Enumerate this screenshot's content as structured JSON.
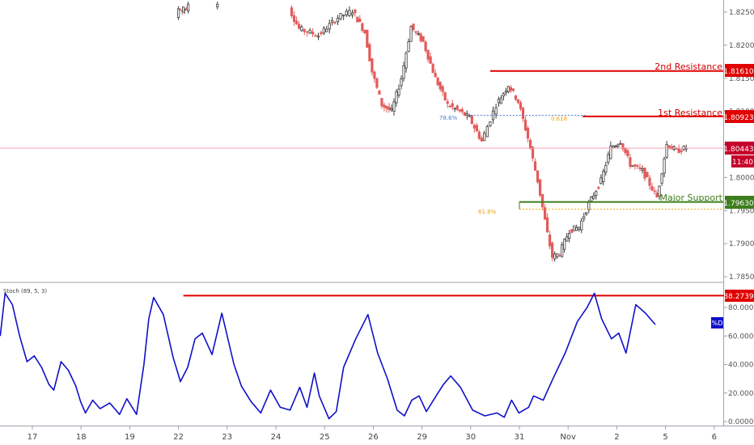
{
  "colors": {
    "up_candle": "#3a3a3a",
    "down_candle": "#e35b5b",
    "resistance": "#e00000",
    "support": "#3e7d1c",
    "fib": "#f0a500",
    "fib_blue": "#4a7fd0",
    "stoch_line": "#1010c8",
    "price_line": "#f2a3b5",
    "current_tag": "#c6002a",
    "pct_badge": "#1010c8"
  },
  "price_axis": {
    "ticks": [
      "1.82500",
      "1.82000",
      "1.81500",
      "1.81000",
      "1.80500",
      "1.80000",
      "1.79500",
      "1.79000",
      "1.78500"
    ],
    "current_price": "1.80443",
    "countdown": "11:40"
  },
  "levels": {
    "r2": {
      "label": "2nd Resistance",
      "value": "1.81610"
    },
    "r1": {
      "label": "1st Resistance",
      "value": "1.80923"
    },
    "support": {
      "label": "Major Support",
      "value": "1.79630"
    }
  },
  "fib_labels": {
    "f1": "78.6%",
    "f2": "0.618",
    "f3": "61.8%"
  },
  "indicator": {
    "name": "Stoch (89, 5, 3)",
    "level_value": "88.2739",
    "badge": "%D",
    "ticks": [
      "80.0000",
      "60.0000",
      "40.0000",
      "20.0000",
      "0.0000"
    ]
  },
  "time_axis": [
    "17",
    "18",
    "19",
    "22",
    "23",
    "24",
    "25",
    "26",
    "29",
    "30",
    "31",
    "Nov",
    "2",
    "5",
    "6"
  ],
  "chart_data": [
    {
      "type": "candlestick",
      "title": "",
      "ylim": [
        1.7835,
        1.8265
      ],
      "x_ticks": [
        "17",
        "18",
        "19",
        "22",
        "23",
        "24",
        "25",
        "26",
        "29",
        "30",
        "31",
        "Nov",
        "2",
        "5",
        "6"
      ],
      "anchors": [
        {
          "day": 3.0,
          "price": 1.8255
        },
        {
          "day": 3.1,
          "price": 1.8252
        },
        {
          "day": 3.2,
          "price": 1.8258
        },
        {
          "day": 5.3,
          "price": 1.8255
        },
        {
          "day": 5.5,
          "price": 1.8225
        },
        {
          "day": 5.9,
          "price": 1.8215
        },
        {
          "day": 6.3,
          "price": 1.8242
        },
        {
          "day": 6.6,
          "price": 1.8252
        },
        {
          "day": 6.85,
          "price": 1.822
        },
        {
          "day": 7.0,
          "price": 1.816
        },
        {
          "day": 7.2,
          "price": 1.811
        },
        {
          "day": 7.4,
          "price": 1.81
        },
        {
          "day": 7.6,
          "price": 1.815
        },
        {
          "day": 7.8,
          "price": 1.8228
        },
        {
          "day": 8.05,
          "price": 1.8205
        },
        {
          "day": 8.3,
          "price": 1.815
        },
        {
          "day": 8.55,
          "price": 1.811
        },
        {
          "day": 8.8,
          "price": 1.81
        },
        {
          "day": 9.0,
          "price": 1.809
        },
        {
          "day": 9.25,
          "price": 1.8055
        },
        {
          "day": 9.55,
          "price": 1.811
        },
        {
          "day": 9.8,
          "price": 1.814
        },
        {
          "day": 10.0,
          "price": 1.8115
        },
        {
          "day": 10.2,
          "price": 1.806
        },
        {
          "day": 10.4,
          "price": 1.7995
        },
        {
          "day": 10.6,
          "price": 1.7915
        },
        {
          "day": 10.7,
          "price": 1.788
        },
        {
          "day": 10.85,
          "price": 1.7885
        },
        {
          "day": 11.05,
          "price": 1.792
        },
        {
          "day": 11.25,
          "price": 1.7925
        },
        {
          "day": 11.45,
          "price": 1.796
        },
        {
          "day": 11.7,
          "price": 1.7995
        },
        {
          "day": 11.9,
          "price": 1.8045
        },
        {
          "day": 12.1,
          "price": 1.8055
        },
        {
          "day": 12.3,
          "price": 1.802
        },
        {
          "day": 12.55,
          "price": 1.801
        },
        {
          "day": 12.7,
          "price": 1.799
        },
        {
          "day": 12.85,
          "price": 1.797
        },
        {
          "day": 13.05,
          "price": 1.805
        },
        {
          "day": 13.25,
          "price": 1.804
        },
        {
          "day": 13.45,
          "price": 1.8045
        }
      ],
      "horizontal_levels": [
        {
          "name": "2nd Resistance",
          "value": 1.8161
        },
        {
          "name": "1st Resistance",
          "value": 1.80923
        },
        {
          "name": "Major Support",
          "value": 1.7963
        },
        {
          "name": "61.8%",
          "value": 1.7952
        },
        {
          "name": "current",
          "value": 1.80443
        }
      ]
    },
    {
      "type": "line",
      "title": "Stoch (89, 5, 3)",
      "ylim": [
        0,
        100
      ],
      "y_ticks": [
        0,
        20,
        40,
        60,
        80
      ],
      "level": 88.2739,
      "x": [
        0,
        0.1,
        0.25,
        0.4,
        0.55,
        0.7,
        0.85,
        1.0,
        1.1,
        1.25,
        1.4,
        1.55,
        1.65,
        1.75,
        1.9,
        2.05,
        2.25,
        2.45,
        2.6,
        2.8,
        2.95,
        3.05,
        3.15,
        3.35,
        3.55,
        3.7,
        3.85,
        4.0,
        4.15,
        4.35,
        4.55,
        4.8,
        4.95,
        5.15,
        5.35,
        5.55,
        5.75,
        5.95,
        6.15,
        6.3,
        6.45,
        6.55,
        6.75,
        6.9,
        7.05,
        7.3,
        7.55,
        7.75,
        7.95,
        8.15,
        8.3,
        8.45,
        8.6,
        8.75,
        8.95,
        9.1,
        9.25,
        9.45,
        9.7,
        9.95,
        10.2,
        10.35,
        10.5,
        10.65,
        10.85,
        10.95,
        11.15,
        11.35,
        11.6,
        11.85,
        12.05,
        12.2,
        12.35,
        12.55,
        12.7,
        12.85,
        13.05,
        13.25,
        13.45
      ],
      "y": [
        60,
        90,
        82,
        60,
        42,
        46,
        38,
        26,
        22,
        42,
        36,
        25,
        14,
        6,
        15,
        9,
        13,
        5,
        16,
        5,
        40,
        72,
        87,
        75,
        45,
        28,
        38,
        58,
        62,
        47,
        76,
        40,
        25,
        14,
        6,
        22,
        10,
        8,
        24,
        10,
        34,
        18,
        2,
        7,
        38,
        58,
        75,
        48,
        30,
        8,
        4,
        15,
        18,
        7,
        18,
        26,
        32,
        24,
        8,
        4,
        6,
        3,
        15,
        6,
        10,
        18,
        15,
        30,
        48,
        70,
        80,
        90,
        72,
        58,
        62,
        48,
        82,
        76,
        68
      ]
    }
  ]
}
